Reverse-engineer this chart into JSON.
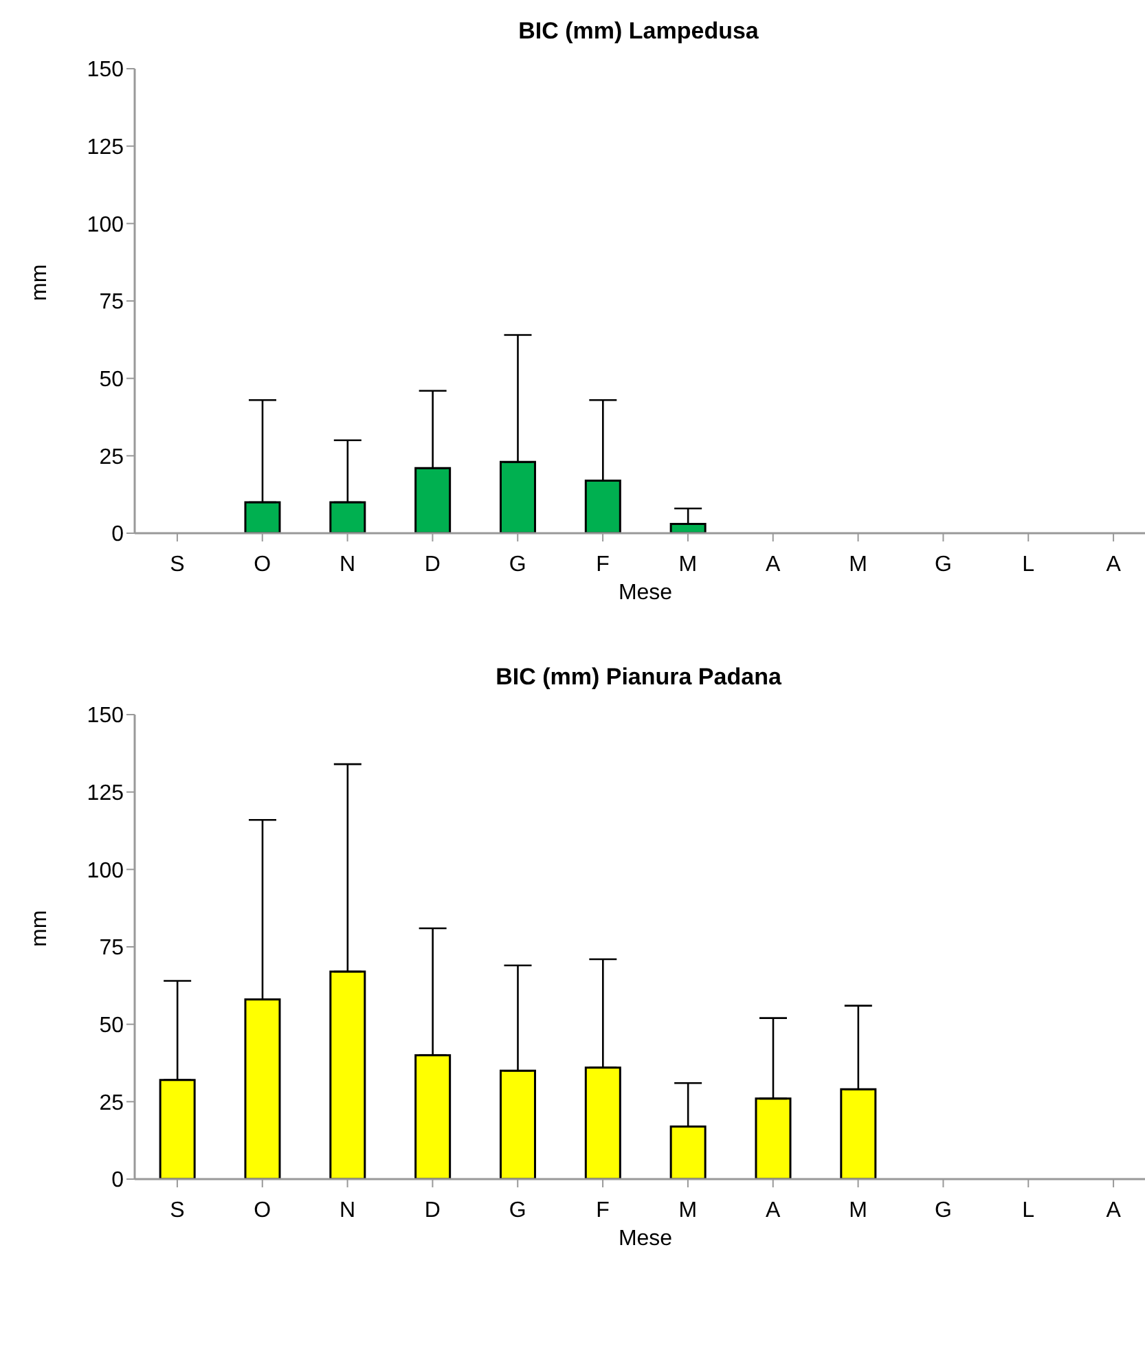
{
  "chart_data": [
    {
      "type": "bar",
      "title": "BIC (mm) Lampedusa",
      "xlabel": "Mese",
      "ylabel": "mm",
      "categories": [
        "S",
        "O",
        "N",
        "D",
        "G",
        "F",
        "M",
        "A",
        "M",
        "G",
        "L",
        "A"
      ],
      "series": [
        {
          "color": "#00b050",
          "values": [
            null,
            10,
            10,
            21,
            23,
            17,
            3,
            null,
            null,
            null,
            null,
            null
          ],
          "errors": [
            null,
            [
              10,
              43
            ],
            [
              10,
              30
            ],
            [
              21,
              46
            ],
            [
              23,
              64
            ],
            [
              17,
              43
            ],
            [
              3,
              8
            ],
            null,
            null,
            null,
            null,
            null
          ]
        }
      ],
      "ylim": [
        0,
        150
      ],
      "yticks": [
        0,
        25,
        50,
        75,
        100,
        125,
        150
      ],
      "grid": false,
      "legend": false
    },
    {
      "type": "bar",
      "title": "BIC (mm) Pianura Padana",
      "xlabel": "Mese",
      "ylabel": "mm",
      "categories": [
        "S",
        "O",
        "N",
        "D",
        "G",
        "F",
        "M",
        "A",
        "M",
        "G",
        "L",
        "A"
      ],
      "series": [
        {
          "color": "#ffff00",
          "values": [
            32,
            58,
            67,
            40,
            35,
            36,
            17,
            26,
            29,
            null,
            null,
            null
          ],
          "errors": [
            [
              32,
              64
            ],
            [
              58,
              116
            ],
            [
              67,
              134
            ],
            [
              40,
              81
            ],
            [
              35,
              69
            ],
            [
              36,
              71
            ],
            [
              17,
              31
            ],
            [
              26,
              52
            ],
            [
              29,
              56
            ],
            null,
            null,
            null
          ]
        }
      ],
      "ylim": [
        0,
        150
      ],
      "yticks": [
        0,
        25,
        50,
        75,
        100,
        125,
        150
      ],
      "grid": false,
      "legend": false
    }
  ]
}
